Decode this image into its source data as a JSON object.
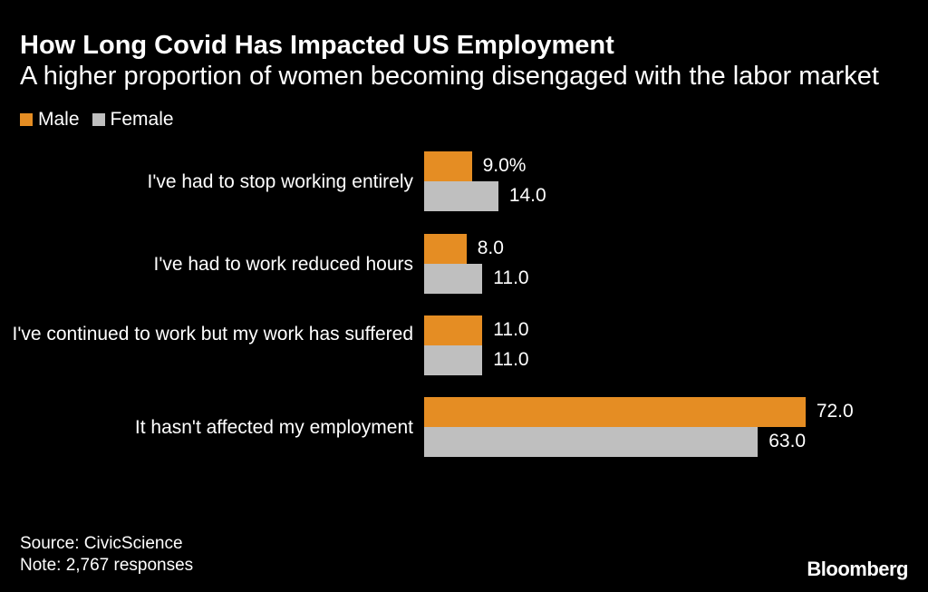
{
  "header": {
    "title": "How Long Covid Has Impacted US Employment",
    "subtitle": "A higher proportion of women becoming disengaged with the labor market"
  },
  "legend": [
    {
      "name": "Male",
      "color": "#E58D23"
    },
    {
      "name": "Female",
      "color": "#BFBFBF"
    }
  ],
  "chart_data": {
    "type": "bar",
    "orientation": "horizontal",
    "title": "How Long Covid Has Impacted US Employment",
    "subtitle": "A higher proportion of women becoming disengaged with the labor market",
    "categories": [
      "I've had to stop working entirely",
      "I've had to work reduced hours",
      "I've continued to work but my work has suffered",
      "It hasn't affected my employment"
    ],
    "series": [
      {
        "name": "Male",
        "color": "#E58D23",
        "values": [
          9.0,
          8.0,
          11.0,
          72.0
        ],
        "labels": [
          "9.0%",
          "8.0",
          "11.0",
          "72.0"
        ]
      },
      {
        "name": "Female",
        "color": "#BFBFBF",
        "values": [
          14.0,
          11.0,
          11.0,
          63.0
        ],
        "labels": [
          "14.0",
          "11.0",
          "11.0",
          "63.0"
        ]
      }
    ],
    "unit": "%",
    "legend_position": "top-left",
    "grid": false
  },
  "footer": {
    "source": "Source: CivicScience",
    "note": "Note: 2,767 responses",
    "brand": "Bloomberg"
  }
}
